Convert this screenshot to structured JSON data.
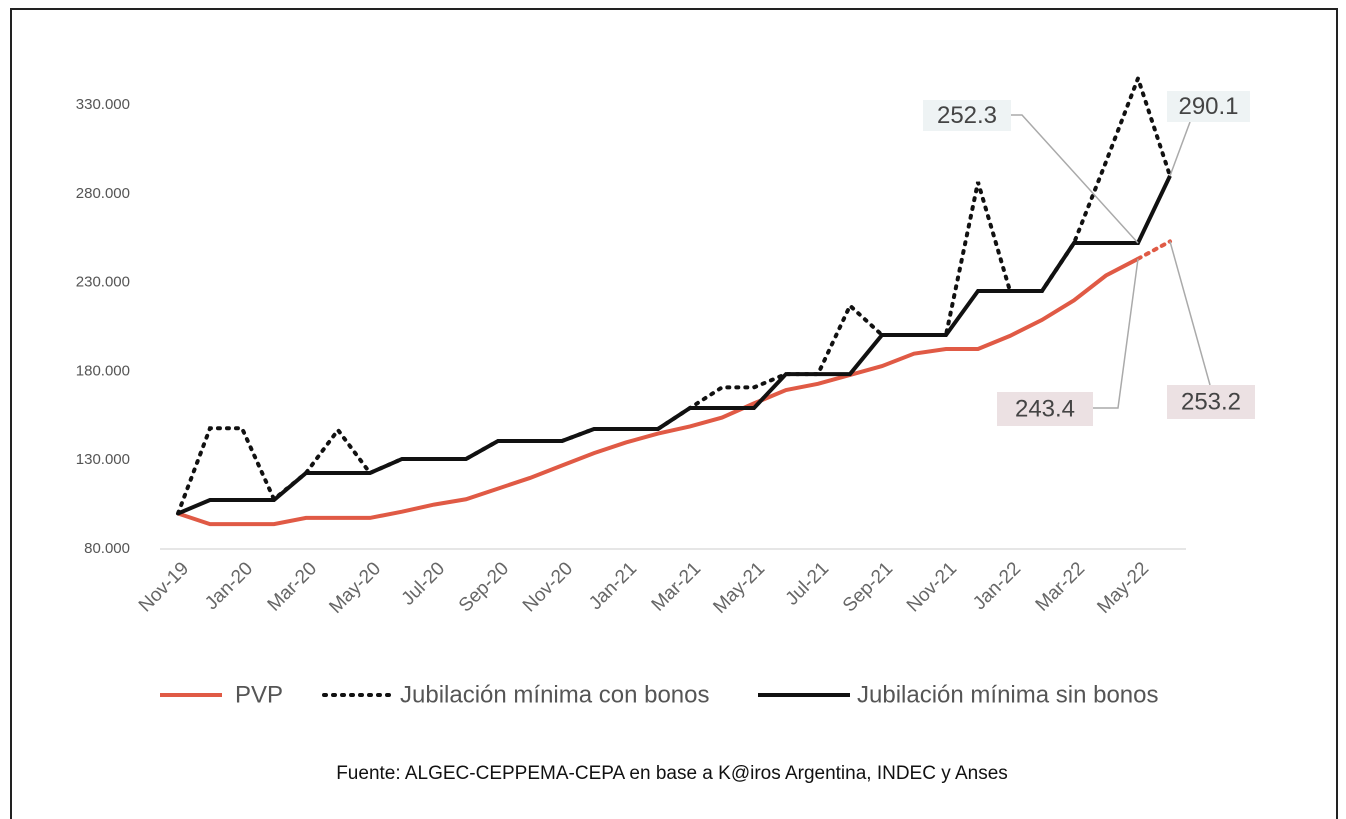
{
  "chart_data": {
    "type": "line",
    "categories": [
      "Nov-19",
      null,
      "Jan-20",
      null,
      "Mar-20",
      null,
      "May-20",
      null,
      "Jul-20",
      null,
      "Sep-20",
      null,
      "Nov-20",
      null,
      "Jan-21",
      null,
      "Mar-21",
      null,
      "May-21",
      null,
      "Jul-21",
      null,
      "Sep-21",
      null,
      "Nov-21",
      null,
      "Jan-22",
      null,
      "Mar-22",
      null,
      "May-22",
      null
    ],
    "series": [
      {
        "name": "PVP",
        "color": "#e05a45",
        "line_style": "solid",
        "values": [
          100,
          94,
          94,
          94,
          97.5,
          97.5,
          97.5,
          101,
          105,
          108,
          114,
          120,
          127,
          134,
          140,
          145,
          149,
          154,
          162,
          169.5,
          173,
          178,
          183,
          190,
          192.6,
          192.6,
          200,
          209,
          220,
          234,
          243.4,
          253.2
        ]
      },
      {
        "name": "Jubilación mínima con bonos",
        "color": "#111111",
        "line_style": "dotted",
        "values": [
          100,
          148,
          148,
          108,
          122.8,
          147,
          122.8,
          130.7,
          130.7,
          130.7,
          140.8,
          140.8,
          140.8,
          147.6,
          147.6,
          147.6,
          159.4,
          171,
          171,
          178.5,
          178.5,
          217,
          200.5,
          200.5,
          200.5,
          286.6,
          225.3,
          225.3,
          252.3,
          298,
          345,
          290.1
        ]
      },
      {
        "name": "Jubilación mínima sin bonos",
        "color": "#111111",
        "line_style": "solid",
        "values": [
          100,
          107.6,
          107.6,
          107.6,
          122.8,
          122.8,
          122.8,
          130.7,
          130.7,
          130.7,
          140.8,
          140.8,
          140.8,
          147.6,
          147.6,
          147.6,
          159.4,
          159.4,
          159.4,
          178.5,
          178.5,
          178.5,
          200.5,
          200.5,
          200.5,
          225.3,
          225.3,
          225.3,
          252.3,
          252.3,
          252.3,
          290.1
        ]
      }
    ],
    "ylim": [
      80,
      330
    ],
    "yticks": [
      {
        "value": 80,
        "label": "80.000"
      },
      {
        "value": 130,
        "label": "130.000"
      },
      {
        "value": 180,
        "label": "180.000"
      },
      {
        "value": 230,
        "label": "230.000"
      },
      {
        "value": 280,
        "label": "280.000"
      },
      {
        "value": 330,
        "label": "330.000"
      }
    ],
    "annotations": [
      "252.3",
      "290.1",
      "243.4",
      "253.2"
    ],
    "source": "Fuente: ALGEC-CEPPEMA-CEPA en base a K@iros Argentina, INDEC y Anses",
    "legend": "bottom",
    "grid": false
  }
}
